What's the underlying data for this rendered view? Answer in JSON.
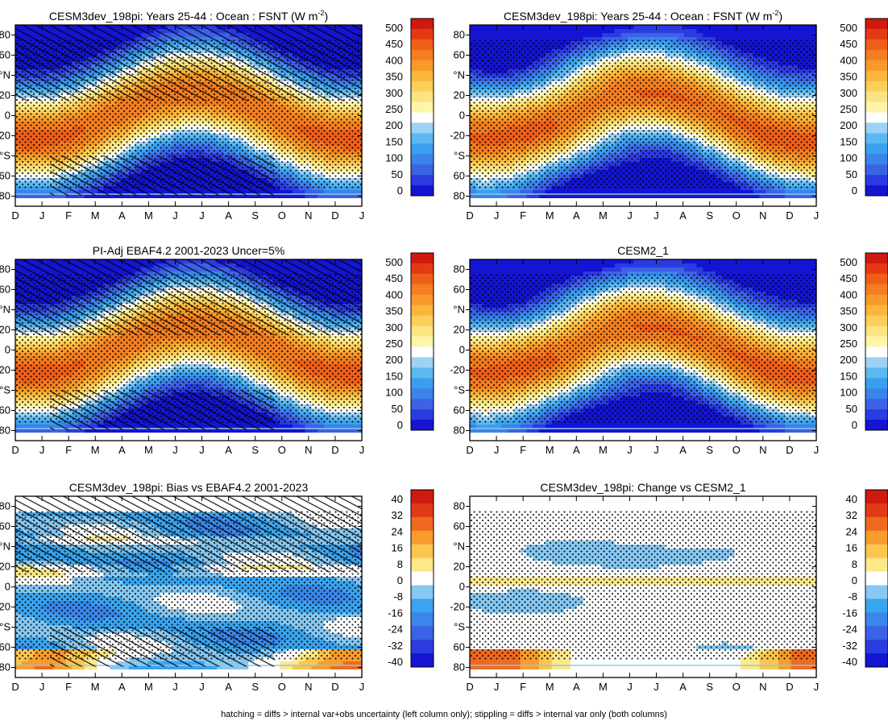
{
  "footer": "hatching = diffs > internal var+obs uncertainty (left column only); stippling = diffs > internal var only (both columns)",
  "month_ticks": [
    "D",
    "J",
    "F",
    "M",
    "A",
    "M",
    "J",
    "J",
    "A",
    "S",
    "O",
    "N",
    "D",
    "J"
  ],
  "lat_ticks": [
    "80",
    "60",
    "°N",
    "20",
    "0",
    "-20",
    "°S",
    "60",
    "80"
  ],
  "colors": {
    "abs": [
      "#1414d2",
      "#2a3ce0",
      "#3c62e6",
      "#3a84ea",
      "#3aa0ee",
      "#5cb8f0",
      "#9cd2f4",
      "#ffffff",
      "#fef5a8",
      "#fde482",
      "#fcce5a",
      "#fbb53a",
      "#f89a2a",
      "#f47e20",
      "#ef5f1a",
      "#e43a14",
      "#cf1a10"
    ],
    "diff": [
      "#1414d2",
      "#2a3ce0",
      "#3a62e6",
      "#3a86ea",
      "#3aa4ee",
      "#86c8f2",
      "#ffffff",
      "#fde88a",
      "#fbc64e",
      "#f89c2c",
      "#ef6a1e",
      "#e03a16",
      "#cf1a10"
    ]
  },
  "chart_data": [
    {
      "type": "heatmap",
      "title": "CESM3dev_198pi: Years 25-44 : Ocean : FSNT (W m",
      "title_sup": "-2",
      "title_end": ")",
      "xlabel": "",
      "ylabel": "",
      "x_categories": [
        "D",
        "J",
        "F",
        "M",
        "A",
        "M",
        "J",
        "J",
        "A",
        "S",
        "O",
        "N",
        "D",
        "J"
      ],
      "ylim": [
        -90,
        90
      ],
      "colorbar": {
        "ticks": [
          "500",
          "450",
          "400",
          "350",
          "300",
          "250",
          "200",
          "150",
          "100",
          "50",
          "0"
        ],
        "range": [
          0,
          500
        ]
      },
      "field": "absolute",
      "hatching": true,
      "stippling": true
    },
    {
      "type": "heatmap",
      "title": "CESM3dev_198pi: Years 25-44 : Ocean : FSNT (W m",
      "title_sup": "-2",
      "title_end": ")",
      "xlabel": "",
      "ylabel": "",
      "x_categories": [
        "D",
        "J",
        "F",
        "M",
        "A",
        "M",
        "J",
        "J",
        "A",
        "S",
        "O",
        "N",
        "D",
        "J"
      ],
      "ylim": [
        -90,
        90
      ],
      "colorbar": {
        "ticks": [
          "500",
          "450",
          "400",
          "350",
          "300",
          "250",
          "200",
          "150",
          "100",
          "50",
          "0"
        ],
        "range": [
          0,
          500
        ]
      },
      "field": "absolute",
      "hatching": false,
      "stippling": true
    },
    {
      "type": "heatmap",
      "title": "PI-Adj EBAF4.2 2001-2023 Uncer=5%",
      "xlabel": "",
      "ylabel": "",
      "x_categories": [
        "D",
        "J",
        "F",
        "M",
        "A",
        "M",
        "J",
        "J",
        "A",
        "S",
        "O",
        "N",
        "D",
        "J"
      ],
      "ylim": [
        -90,
        90
      ],
      "colorbar": {
        "ticks": [
          "500",
          "450",
          "400",
          "350",
          "300",
          "250",
          "200",
          "150",
          "100",
          "50",
          "0"
        ],
        "range": [
          0,
          500
        ]
      },
      "field": "absolute",
      "hatching": true,
      "stippling": true
    },
    {
      "type": "heatmap",
      "title": "CESM2_1",
      "xlabel": "",
      "ylabel": "",
      "x_categories": [
        "D",
        "J",
        "F",
        "M",
        "A",
        "M",
        "J",
        "J",
        "A",
        "S",
        "O",
        "N",
        "D",
        "J"
      ],
      "ylim": [
        -90,
        90
      ],
      "colorbar": {
        "ticks": [
          "500",
          "450",
          "400",
          "350",
          "300",
          "250",
          "200",
          "150",
          "100",
          "50",
          "0"
        ],
        "range": [
          0,
          500
        ]
      },
      "field": "absolute",
      "hatching": false,
      "stippling": true
    },
    {
      "type": "heatmap",
      "title": "CESM3dev_198pi: Bias vs EBAF4.2 2001-2023",
      "xlabel": "",
      "ylabel": "",
      "x_categories": [
        "D",
        "J",
        "F",
        "M",
        "A",
        "M",
        "J",
        "J",
        "A",
        "S",
        "O",
        "N",
        "D",
        "J"
      ],
      "ylim": [
        -90,
        90
      ],
      "colorbar": {
        "ticks": [
          "40",
          "32",
          "24",
          "16",
          "8",
          "0",
          "-8",
          "-16",
          "-24",
          "-32",
          "-40"
        ],
        "range": [
          -40,
          40
        ]
      },
      "field": "bias",
      "hatching": true,
      "stippling": true
    },
    {
      "type": "heatmap",
      "title": "CESM3dev_198pi: Change vs CESM2_1",
      "xlabel": "",
      "ylabel": "",
      "x_categories": [
        "D",
        "J",
        "F",
        "M",
        "A",
        "M",
        "J",
        "J",
        "A",
        "S",
        "O",
        "N",
        "D",
        "J"
      ],
      "ylim": [
        -90,
        90
      ],
      "colorbar": {
        "ticks": [
          "40",
          "32",
          "24",
          "16",
          "8",
          "0",
          "-8",
          "-16",
          "-24",
          "-32",
          "-40"
        ],
        "range": [
          -40,
          40
        ]
      },
      "field": "change",
      "hatching": false,
      "stippling": true
    }
  ]
}
